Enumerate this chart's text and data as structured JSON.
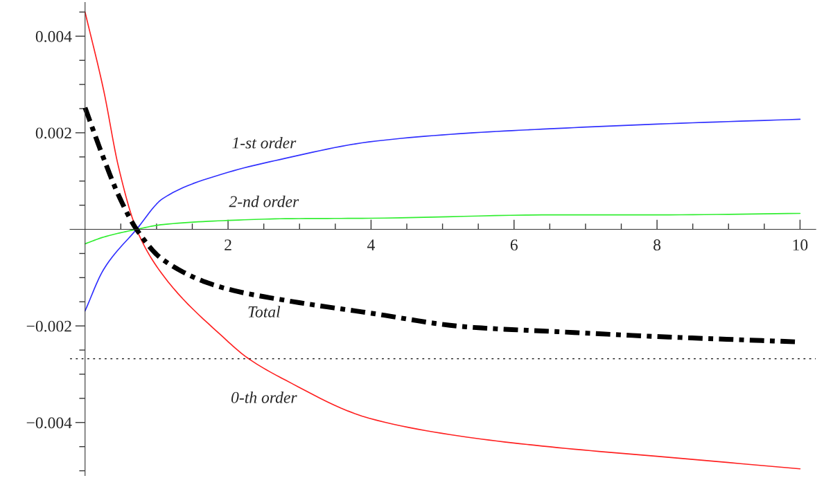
{
  "chart_data": {
    "type": "line",
    "xlim": [
      -0.21,
      10.22
    ],
    "ylim": [
      -0.0051,
      0.0047
    ],
    "xticks": [
      {
        "value": 0.5,
        "label": null
      },
      {
        "value": 1,
        "label": null
      },
      {
        "value": 1.5,
        "label": null
      },
      2,
      {
        "value": 2.5,
        "label": null
      },
      {
        "value": 3,
        "label": null
      },
      {
        "value": 3.5,
        "label": null
      },
      4,
      {
        "value": 4.5,
        "label": null
      },
      {
        "value": 5,
        "label": null
      },
      {
        "value": 5.5,
        "label": null
      },
      6,
      {
        "value": 6.5,
        "label": null
      },
      {
        "value": 7,
        "label": null
      },
      {
        "value": 7.5,
        "label": null
      },
      8,
      {
        "value": 8.5,
        "label": null
      },
      {
        "value": 9,
        "label": null
      },
      {
        "value": 9.5,
        "label": null
      },
      10
    ],
    "yticks": [
      {
        "value": -0.005,
        "label": null
      },
      {
        "value": -0.0045,
        "label": null
      },
      {
        "value": -0.004,
        "label": "−0.004"
      },
      {
        "value": -0.0035,
        "label": null
      },
      {
        "value": -0.003,
        "label": null
      },
      {
        "value": -0.0025,
        "label": null
      },
      {
        "value": -0.002,
        "label": "−0.002"
      },
      {
        "value": -0.0015,
        "label": null
      },
      {
        "value": -0.001,
        "label": null
      },
      {
        "value": -0.0005,
        "label": null
      },
      {
        "value": 0.0005,
        "label": null
      },
      {
        "value": 0.001,
        "label": null
      },
      {
        "value": 0.0015,
        "label": null
      },
      {
        "value": 0.002,
        "label": "0.002"
      },
      {
        "value": 0.0025,
        "label": null
      },
      {
        "value": 0.003,
        "label": null
      },
      {
        "value": 0.0035,
        "label": null
      },
      {
        "value": 0.004,
        "label": "0.004"
      },
      {
        "value": 0.0045,
        "label": null
      }
    ],
    "grid": false,
    "legend": false,
    "marker": "none",
    "series": [
      {
        "color": "#ff2020",
        "line_style": "solid",
        "x": [
          0,
          0.26,
          0.47,
          0.72,
          1.09,
          1.93,
          2.27,
          2.8,
          3.97,
          5.33,
          6.61,
          8,
          10
        ],
        "values": [
          0.0045,
          0.00288,
          0.00128,
          0,
          -0.00095,
          -0.00223,
          -0.00266,
          -0.00312,
          -0.00391,
          -0.0043,
          -0.00452,
          -0.0047,
          -0.00496
        ]
      },
      {
        "color": "#3030ff",
        "line_style": "solid",
        "x": [
          0,
          0.26,
          0.72,
          1.09,
          1.93,
          2.8,
          3.97,
          5.33,
          6.61,
          8,
          10
        ],
        "values": [
          -0.00169,
          -0.00083,
          0,
          0.00064,
          0.00115,
          0.00147,
          0.00181,
          0.00199,
          0.00209,
          0.00218,
          0.00228
        ]
      },
      {
        "color": "#30ee30",
        "line_style": "solid",
        "x": [
          0,
          0.26,
          0.72,
          1.09,
          1.93,
          2.8,
          3.97,
          6.61,
          8,
          10
        ],
        "values": [
          -0.0003,
          -0.00016,
          0,
          0.0001,
          0.00018,
          0.00022,
          0.00023,
          0.0003,
          0.0003,
          0.00033
        ]
      },
      {
        "color": "#000000",
        "line_style": "dashdot",
        "x": [
          0,
          0.26,
          0.47,
          0.72,
          1.09,
          1.93,
          2.8,
          3.97,
          5.33,
          6.61,
          8,
          9.95
        ],
        "values": [
          0.00252,
          0.00147,
          0.0007,
          0,
          -0.00063,
          -0.00121,
          -0.00147,
          -0.00173,
          -0.00202,
          -0.00212,
          -0.00222,
          -0.00233
        ]
      }
    ],
    "ref_lines": [
      {
        "axis": "y",
        "value": -0.00268,
        "label": null,
        "color": "#000000",
        "line_style": "dotted"
      }
    ],
    "annotations": [
      "1-st order",
      "2-nd order",
      "Total",
      "0-th order"
    ]
  }
}
